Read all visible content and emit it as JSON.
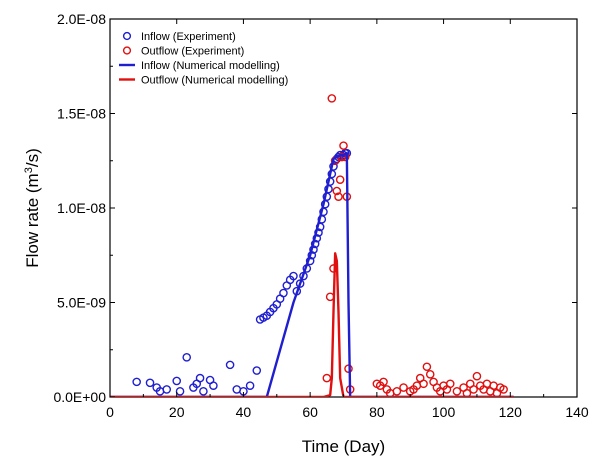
{
  "chart_data": {
    "type": "scatter",
    "title": "",
    "xlabel": "Time (Day)",
    "ylabel_parts": [
      "Flow rate (m",
      "3",
      "/s)"
    ],
    "xlim": [
      0,
      140
    ],
    "ylim": [
      0,
      2e-08
    ],
    "xticks": [
      0,
      20,
      40,
      60,
      80,
      100,
      120,
      140
    ],
    "xtick_labels": [
      "0",
      "20",
      "40",
      "60",
      "80",
      "100",
      "120",
      "140"
    ],
    "yticks": [
      0,
      5e-09,
      1e-08,
      1.5e-08,
      2e-08
    ],
    "ytick_labels": [
      "0.0E+00",
      "5.0E-09",
      "1.0E-08",
      "1.5E-08",
      "2.0E-08"
    ],
    "legend_position": "top-left",
    "colors": {
      "inflow": "#1f1fd0",
      "outflow": "#e01010"
    },
    "series": [
      {
        "name": "Inflow (Experiment)",
        "style": "marker",
        "color": "#1f1fd0",
        "x": [
          8,
          12,
          14,
          15,
          17,
          20,
          21,
          23,
          25,
          26,
          27,
          28,
          30,
          31,
          36,
          38,
          40,
          42,
          44,
          45,
          46,
          47,
          48,
          49,
          50,
          51,
          52,
          53,
          54,
          55,
          56,
          57,
          58,
          59,
          60,
          60.5,
          61,
          61.5,
          62,
          62.5,
          63,
          63.5,
          64,
          64.5,
          65,
          65.5,
          66,
          66.5,
          67,
          67.5,
          68,
          68.5,
          69,
          69.5,
          70,
          70.5,
          71
        ],
        "y": [
          8e-10,
          7.5e-10,
          5e-10,
          3e-10,
          4e-10,
          8.5e-10,
          3e-10,
          2.1e-09,
          5e-10,
          7e-10,
          1e-09,
          3e-10,
          9e-10,
          6e-10,
          1.7e-09,
          4e-10,
          3e-10,
          6e-10,
          1.4e-09,
          4.1e-09,
          4.2e-09,
          4.3e-09,
          4.5e-09,
          4.7e-09,
          4.9e-09,
          5.2e-09,
          5.5e-09,
          5.9e-09,
          6.2e-09,
          6.4e-09,
          5.6e-09,
          6e-09,
          6.4e-09,
          6.8e-09,
          7.2e-09,
          7.5e-09,
          7.8e-09,
          8.1e-09,
          8.4e-09,
          8.7e-09,
          9e-09,
          9.4e-09,
          9.8e-09,
          1.02e-08,
          1.06e-08,
          1.1e-08,
          1.14e-08,
          1.18e-08,
          1.22e-08,
          1.25e-08,
          1.26e-08,
          1.27e-08,
          1.28e-08,
          1.27e-08,
          1.28e-08,
          1.29e-08,
          1.29e-08
        ]
      },
      {
        "name": "Outflow (Experiment)",
        "style": "marker",
        "color": "#e01010",
        "x": [
          65,
          66,
          66.5,
          67,
          67.5,
          68,
          68.5,
          69,
          69.5,
          70,
          70.5,
          71,
          71.5,
          72,
          80,
          81,
          82,
          83,
          84,
          86,
          88,
          90,
          91,
          92,
          93,
          94,
          95,
          96,
          97,
          98,
          99,
          100,
          101,
          102,
          104,
          106,
          107,
          108,
          109,
          110,
          111,
          112,
          113,
          114,
          115,
          116,
          117,
          118
        ],
        "y": [
          1e-09,
          5.3e-09,
          1.58e-08,
          6.8e-09,
          1.25e-08,
          1.09e-08,
          1.06e-08,
          1.15e-08,
          1.27e-08,
          1.33e-08,
          1.27e-08,
          1.06e-08,
          1.5e-09,
          4e-10,
          7e-10,
          6e-10,
          8e-10,
          4e-10,
          2e-10,
          3e-10,
          5e-10,
          3e-10,
          4e-10,
          6e-10,
          1e-09,
          7e-10,
          1.6e-09,
          1.2e-09,
          8e-10,
          5e-10,
          3e-10,
          6e-10,
          4e-10,
          7e-10,
          3e-10,
          5e-10,
          2e-10,
          7e-10,
          4e-10,
          1.1e-09,
          6e-10,
          4e-10,
          7e-10,
          3e-10,
          6e-10,
          2e-10,
          5e-10,
          4e-10
        ]
      },
      {
        "name": "Inflow (Numerical modelling)",
        "style": "line",
        "color": "#1f1fd0",
        "x": [
          0,
          46,
          47,
          55,
          60,
          64,
          66,
          67,
          68,
          69,
          70,
          71,
          71.5,
          72,
          121
        ],
        "y": [
          0,
          0,
          0,
          5e-09,
          7.5e-09,
          1.02e-08,
          1.18e-08,
          1.26e-08,
          1.27e-08,
          1.28e-08,
          1.28e-08,
          1.29e-08,
          5e-09,
          0,
          0
        ]
      },
      {
        "name": "Outflow (Numerical modelling)",
        "style": "line",
        "color": "#e01010",
        "x": [
          0,
          64,
          66,
          66.5,
          67,
          67.5,
          68,
          68.5,
          69,
          70,
          121
        ],
        "y": [
          0,
          0,
          1e-10,
          1e-09,
          4.5e-09,
          7.6e-09,
          7.2e-09,
          4.5e-09,
          1e-09,
          0,
          0
        ]
      }
    ]
  }
}
